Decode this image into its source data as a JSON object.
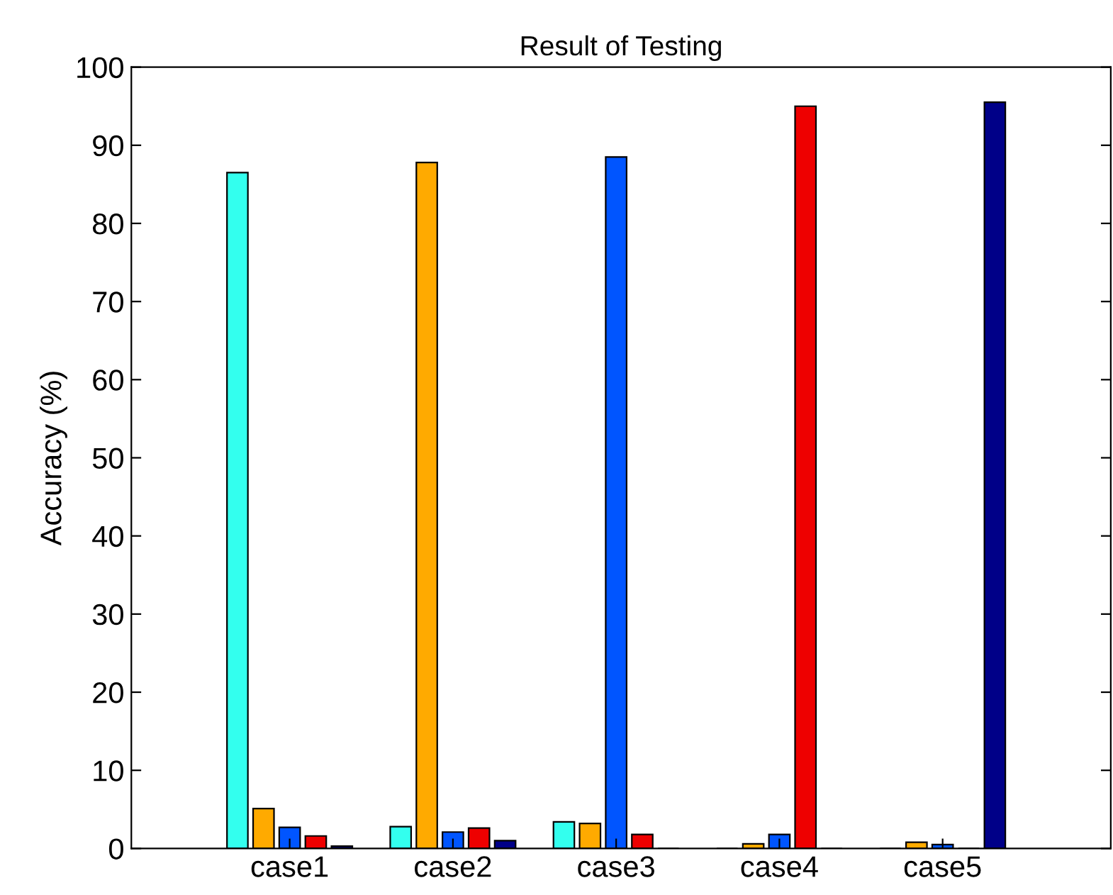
{
  "chart_data": {
    "type": "bar",
    "title": "Result of Testing",
    "ylabel": "Accuracy (%)",
    "categories": [
      "case1",
      "case2",
      "case3",
      "case4",
      "case5"
    ],
    "series": [
      {
        "color": "#33ffee",
        "values": [
          86.5,
          2.8,
          3.4,
          0,
          0
        ]
      },
      {
        "color": "#ffaa00",
        "values": [
          5.1,
          87.8,
          3.2,
          0.6,
          0.8
        ]
      },
      {
        "color": "#0055ff",
        "values": [
          2.7,
          2.1,
          88.5,
          1.8,
          0.5
        ]
      },
      {
        "color": "#ee0000",
        "values": [
          1.6,
          2.6,
          1.8,
          95,
          0
        ]
      },
      {
        "color": "#000088",
        "values": [
          0.3,
          1.0,
          0,
          0,
          95.5
        ]
      }
    ],
    "ylim": [
      0,
      100
    ],
    "yticks": [
      0,
      10,
      20,
      30,
      40,
      50,
      60,
      70,
      80,
      90,
      100
    ],
    "grid": false,
    "legend": false
  }
}
